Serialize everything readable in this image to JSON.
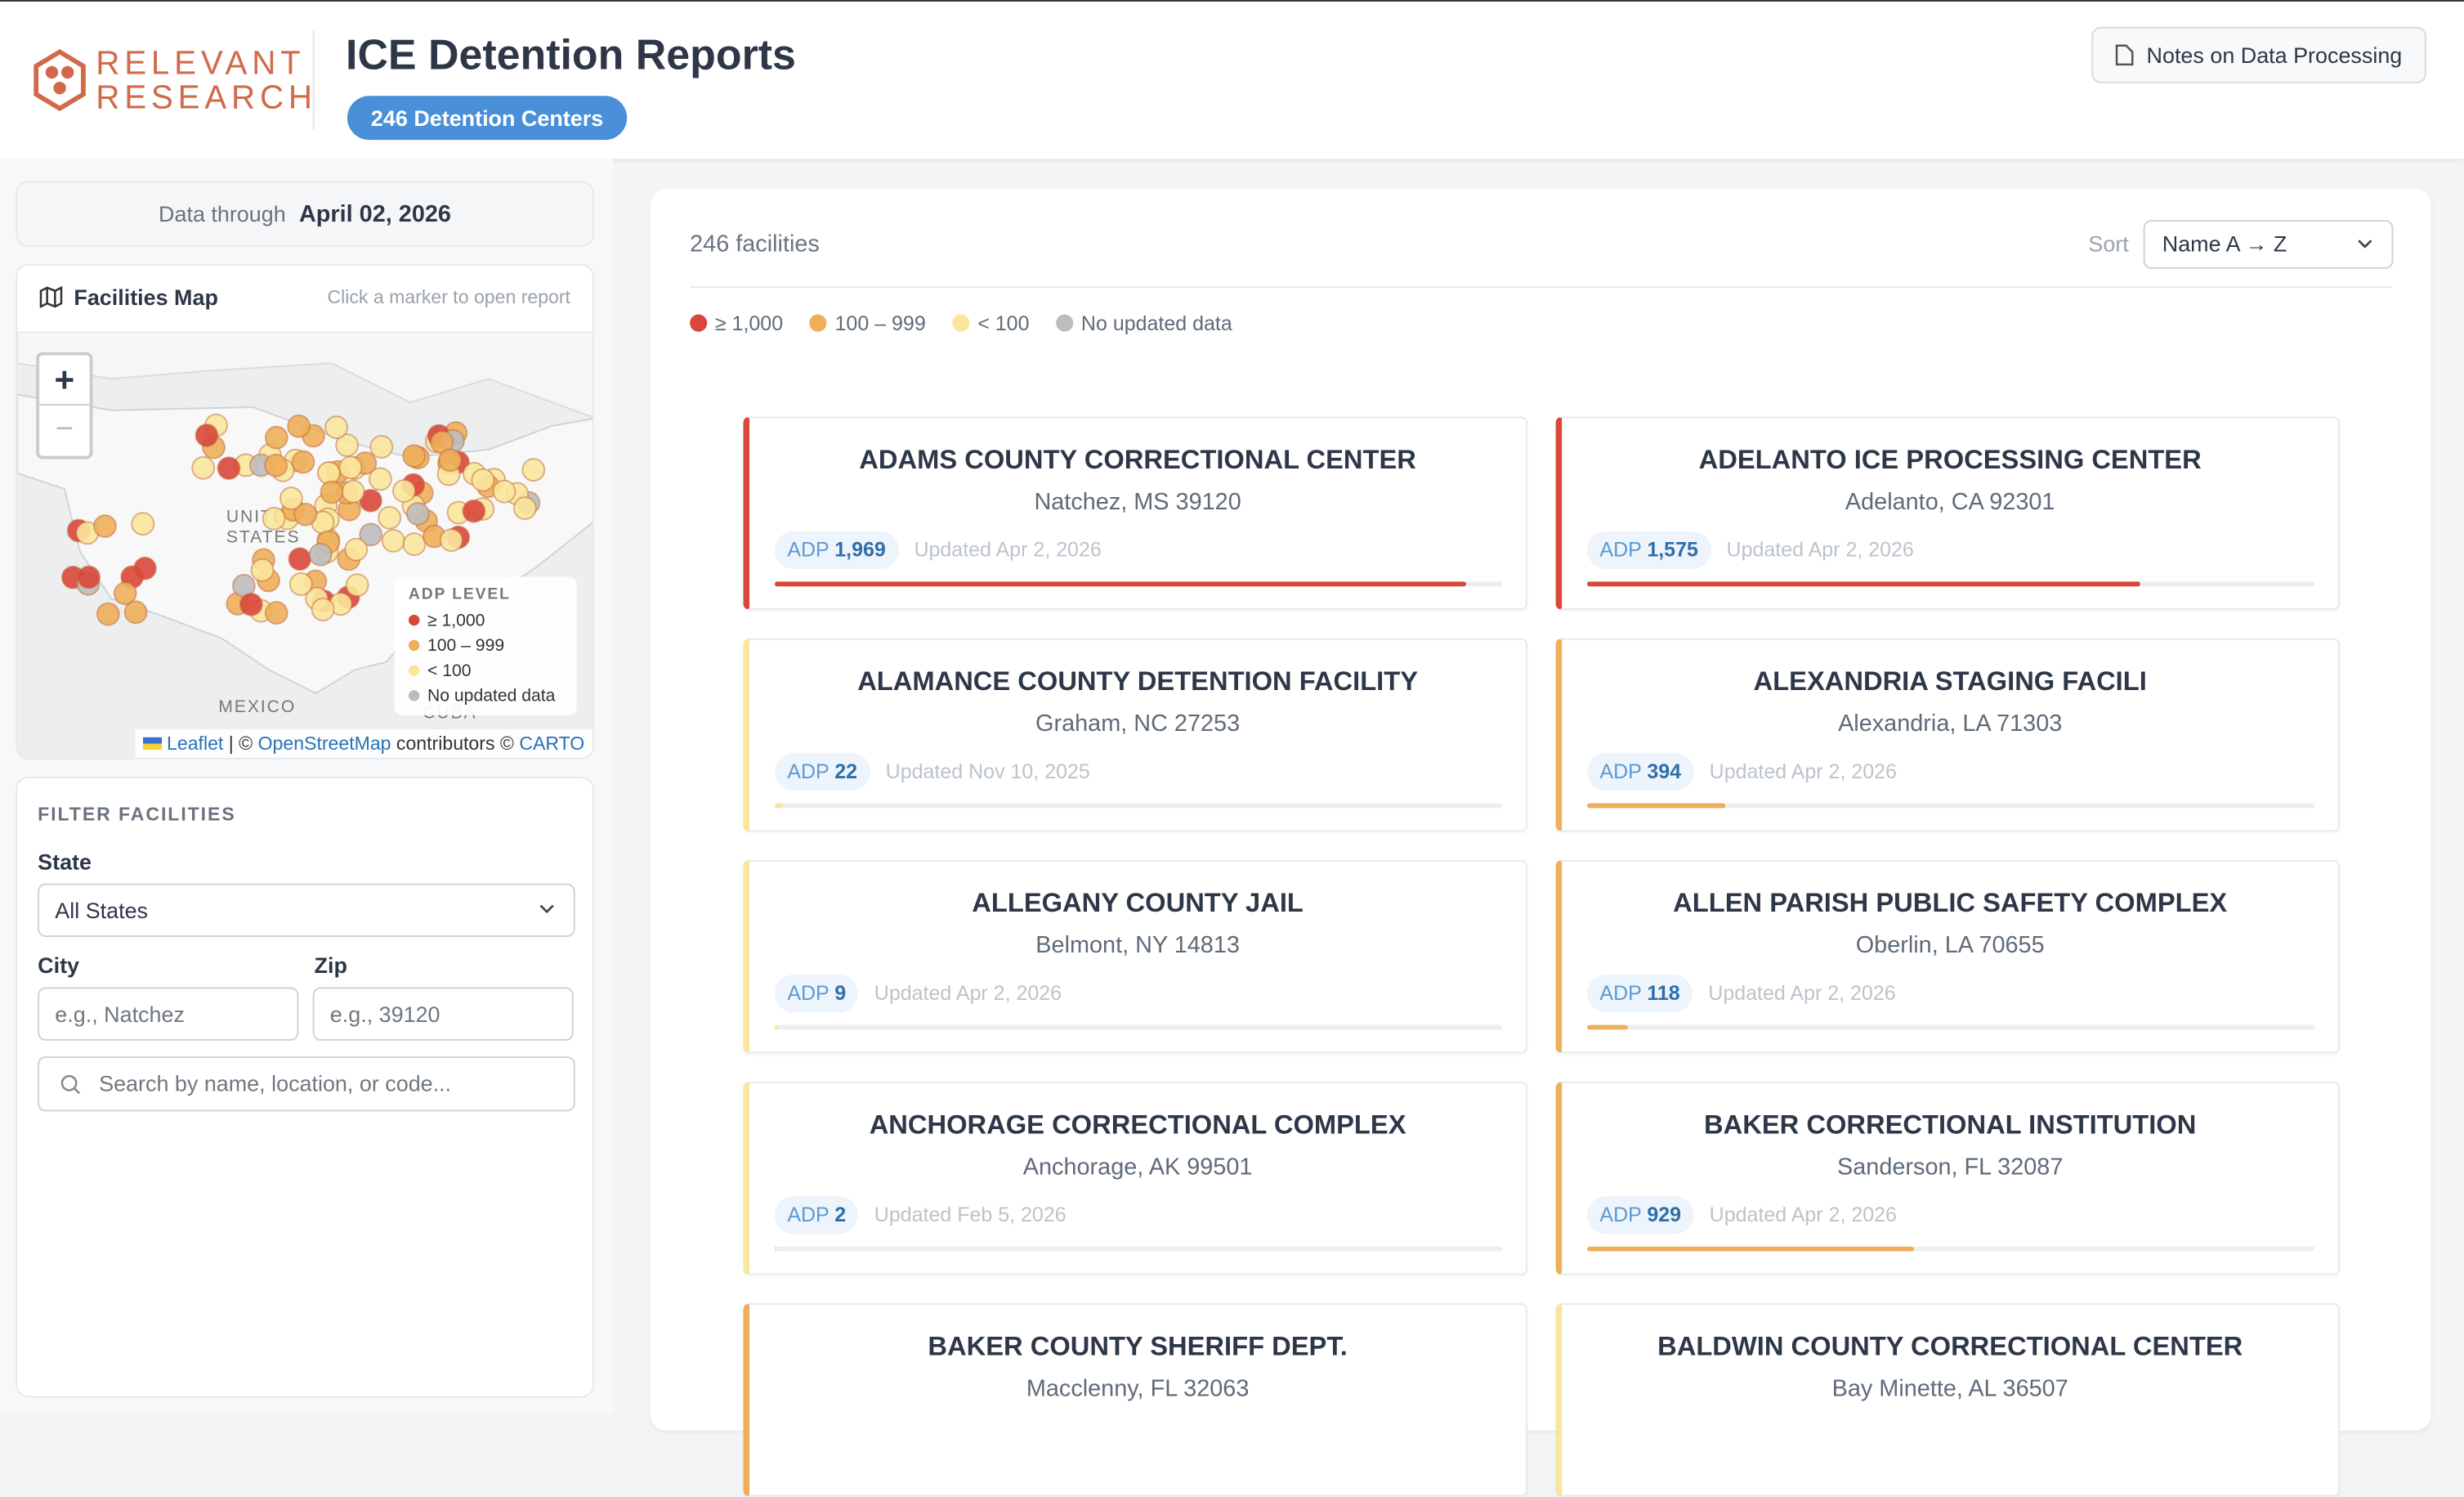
{
  "header": {
    "logo_top": "RELEVANT",
    "logo_bottom": "RESEARCH",
    "title": "ICE Detention Reports",
    "badge": "246 Detention Centers",
    "notes_button": "Notes on Data Processing"
  },
  "sidebar": {
    "data_through_label": "Data through",
    "data_through_date": "April 02, 2026",
    "map": {
      "title": "Facilities Map",
      "hint": "Click a marker to open report",
      "zoom_in": "+",
      "zoom_out": "−",
      "labels": [
        "UNITED",
        "STATES",
        "MEXICO",
        "CUBA"
      ],
      "legend_title": "ADP LEVEL",
      "attribution": {
        "leaflet": "Leaflet",
        "sep": "| ©",
        "osm": "OpenStreetMap",
        "contrib": "contributors ©",
        "carto": "CARTO"
      }
    },
    "filter": {
      "title": "FILTER FACILITIES",
      "state_label": "State",
      "state_value": "All States",
      "city_label": "City",
      "city_placeholder": "e.g., Natchez",
      "zip_label": "Zip",
      "zip_placeholder": "e.g., 39120",
      "search_placeholder": "Search by name, location, or code..."
    }
  },
  "main": {
    "count": "246 facilities",
    "sort_label": "Sort",
    "sort_value": "Name A → Z",
    "legend": [
      {
        "label": "≥ 1,000",
        "color": "#d9473a"
      },
      {
        "label": "100 – 999",
        "color": "#eeae5a"
      },
      {
        "label": "< 100",
        "color": "#f9e59c"
      },
      {
        "label": "No updated data",
        "color": "#bdbdbd"
      }
    ],
    "adp_label": "ADP",
    "cards": [
      {
        "name": "ADAMS COUNTY CORRECTIONAL CENTER",
        "location": "Natchez, MS 39120",
        "adp": {
          "value": 1969,
          "label": "1,969"
        },
        "updated": "Updated Apr 2, 2026",
        "color": "#d9473a"
      },
      {
        "name": "ADELANTO ICE PROCESSING CENTER",
        "location": "Adelanto, CA 92301",
        "adp": {
          "value": 1575,
          "label": "1,575"
        },
        "updated": "Updated Apr 2, 2026",
        "color": "#d9473a"
      },
      {
        "name": "ALAMANCE COUNTY DETENTION FACILITY",
        "location": "Graham, NC 27253",
        "adp": 22,
        "updated": "Updated Nov 10, 2025",
        "color": "#f9e59c"
      },
      {
        "name": "ALEXANDRIA STAGING FACILI",
        "location": "Alexandria, LA 71303",
        "adp": 394,
        "updated": "Updated Apr 2, 2026",
        "color": "#eeae5a"
      },
      {
        "name": "ALLEGANY COUNTY JAIL",
        "location": "Belmont, NY 14813",
        "adp": 9,
        "updated": "Updated Apr 2, 2026",
        "color": "#f9e59c"
      },
      {
        "name": "ALLEN PARISH PUBLIC SAFETY COMPLEX",
        "location": "Oberlin, LA 70655",
        "adp": 118,
        "updated": "Updated Apr 2, 2026",
        "color": "#eeae5a"
      },
      {
        "name": "ANCHORAGE CORRECTIONAL COMPLEX",
        "location": "Anchorage, AK 99501",
        "adp": 2,
        "updated": "Updated Feb 5, 2026",
        "color": "#f9e59c"
      },
      {
        "name": "BAKER CORRECTIONAL INSTITUTION",
        "location": "Sanderson, FL 32087",
        "adp": 929,
        "updated": "Updated Apr 2, 2026",
        "color": "#eeae5a"
      },
      {
        "name": "BAKER COUNTY SHERIFF DEPT.",
        "location": "Macclenny, FL 32063",
        "color": "#eeae5a"
      },
      {
        "name": "BALDWIN COUNTY CORRECTIONAL CENTER",
        "location": "Bay Minette, AL 36507",
        "color": "#f9e59c"
      }
    ]
  }
}
